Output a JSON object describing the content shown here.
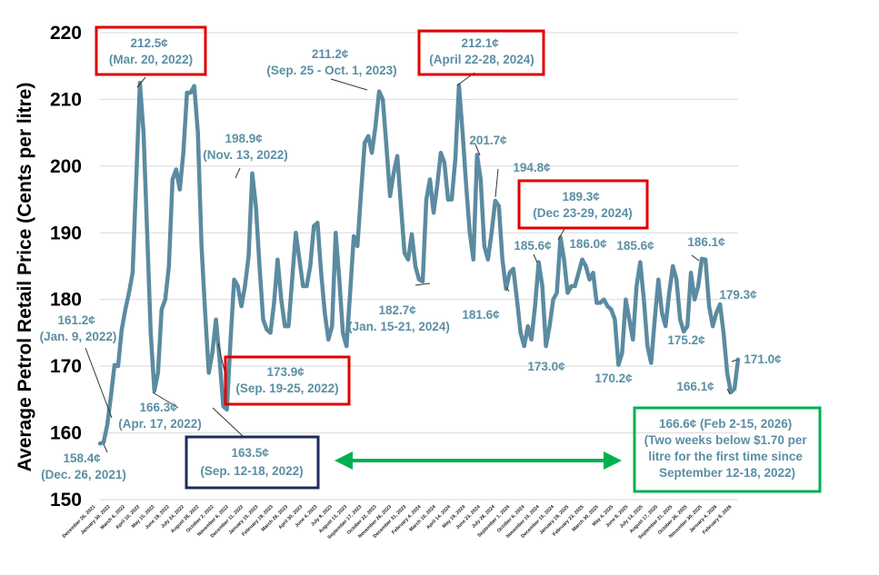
{
  "chart_data": {
    "type": "line",
    "title": "",
    "xlabel": "",
    "ylabel": "Average Petrol Retail Price (Cents per litre)",
    "ylim": [
      150,
      220
    ],
    "yticks": [
      150,
      160,
      170,
      180,
      190,
      200,
      210,
      220
    ],
    "grid": "horizontal",
    "legend": "none",
    "colors": {
      "line": "#5b8ba1",
      "annotation_text": "#5b8fa3",
      "box_red": "#e00000",
      "box_navy": "#1f2d5c",
      "box_green": "#00b050",
      "arrow": "#00b050"
    },
    "x_tick_labels": [
      "December 26, 2021",
      "January 30, 2022",
      "March 6, 2022",
      "April 10, 2022",
      "May 15, 2022",
      "June 19, 2022",
      "July 24, 2022",
      "August 28, 2022",
      "October 2, 2022",
      "November 6, 2022",
      "December 11, 2022",
      "January 15, 2023",
      "February 19, 2023",
      "March 26, 2023",
      "April 30, 2023",
      "June 4, 2023",
      "July 9, 2023",
      "August 13, 2023",
      "September 17, 2023",
      "October 22, 2023",
      "November 26, 2023",
      "December 31, 2023",
      "February 4, 2024",
      "March 10, 2024",
      "April 14, 2024",
      "May 19, 2024",
      "June 23, 2024",
      "July 28, 2024",
      "September 1, 2024",
      "October 6, 2024",
      "November 10, 2024",
      "December 15, 2024",
      "January 19, 2025",
      "February 23, 2025",
      "March 30, 2025",
      "May 4, 2025",
      "June 8, 2025",
      "July 13, 2025",
      "August 17, 2025",
      "September 21, 2025",
      "October 26, 2025",
      "November 30, 2025",
      "January 4, 2026",
      "February 8, 2026"
    ],
    "series": [
      {
        "values": [
          158.4,
          158.6,
          161.2,
          165.5,
          170.2,
          170.0,
          175.5,
          178.5,
          181.0,
          184.0,
          198.0,
          212.5,
          205.0,
          190.0,
          175.0,
          166.3,
          169.0,
          178.5,
          180.0,
          185.0,
          198.0,
          199.5,
          196.5,
          202.0,
          211.0,
          211.0,
          212.0,
          205.0,
          188.0,
          178.0,
          169.0,
          172.0,
          177.0,
          171.0,
          164.0,
          163.5,
          173.9,
          183.0,
          182.0,
          179.0,
          182.0,
          186.5,
          198.9,
          194.0,
          185.0,
          177.0,
          175.5,
          175.0,
          179.5,
          186.0,
          180.0,
          176.0,
          176.0,
          183.0,
          190.0,
          186.0,
          182.0,
          182.0,
          185.0,
          191.0,
          191.5,
          184.0,
          178.0,
          174.0,
          176.0,
          190.0,
          183.0,
          175.0,
          173.0,
          181.0,
          189.5,
          188.0,
          196.0,
          203.5,
          204.5,
          202.0,
          206.0,
          211.2,
          210.0,
          203.0,
          195.5,
          199.0,
          201.5,
          194.0,
          187.0,
          186.0,
          189.8,
          185.0,
          183.0,
          182.7,
          195.0,
          198.0,
          193.0,
          197.0,
          202.0,
          200.5,
          195.0,
          195.0,
          201.0,
          212.1,
          205.0,
          197.0,
          190.0,
          186.0,
          201.7,
          198.0,
          188.0,
          186.0,
          190.0,
          194.8,
          194.0,
          186.0,
          181.6,
          184.0,
          184.6,
          180.0,
          175.0,
          173.0,
          176.0,
          174.0,
          179.0,
          185.6,
          182.0,
          173.0,
          176.0,
          180.0,
          181.0,
          189.3,
          186.0,
          181.0,
          182.0,
          182.0,
          184.0,
          186.0,
          185.0,
          183.0,
          184.0,
          179.5,
          179.5,
          180.0,
          179.0,
          178.5,
          177.0,
          170.2,
          172.0,
          180.0,
          177.0,
          174.0,
          182.0,
          185.6,
          180.0,
          173.0,
          170.5,
          177.0,
          183.0,
          178.0,
          176.0,
          181.0,
          185.0,
          183.0,
          177.0,
          175.2,
          176.0,
          184.0,
          180.0,
          182.0,
          186.1,
          186.0,
          179.0,
          176.0,
          178.0,
          179.3,
          175.0,
          169.0,
          166.1,
          166.6,
          171.0
        ]
      }
    ],
    "annotations": [
      {
        "text": [
          "212.5¢",
          "(Mar. 20, 2022)"
        ],
        "box": "red"
      },
      {
        "text": [
          "211.2¢",
          "(Sep. 25 - Oct. 1, 2023)"
        ],
        "box": "none"
      },
      {
        "text": [
          "212.1¢",
          "(April 22-28, 2024)"
        ],
        "box": "red"
      },
      {
        "text": [
          "198.9¢",
          "(Nov. 13, 2022)"
        ],
        "box": "none"
      },
      {
        "text": [
          "201.7¢"
        ],
        "box": "none"
      },
      {
        "text": [
          "194.8¢"
        ],
        "box": "none"
      },
      {
        "text": [
          "189.3¢",
          "(Dec 23-29, 2024)"
        ],
        "box": "red"
      },
      {
        "text": [
          "185.6¢"
        ],
        "box": "none"
      },
      {
        "text": [
          "186.0¢"
        ],
        "box": "none"
      },
      {
        "text": [
          "185.6¢"
        ],
        "box": "none"
      },
      {
        "text": [
          "186.1¢"
        ],
        "box": "none"
      },
      {
        "text": [
          "179.3¢"
        ],
        "box": "none"
      },
      {
        "text": [
          "175.2¢"
        ],
        "box": "none"
      },
      {
        "text": [
          "181.6¢"
        ],
        "box": "none"
      },
      {
        "text": [
          "182.7¢",
          "(Jan. 15-21, 2024)"
        ],
        "box": "none"
      },
      {
        "text": [
          "161.2¢",
          "(Jan. 9, 2022)"
        ],
        "box": "none"
      },
      {
        "text": [
          "166.3¢",
          "(Apr. 17, 2022)"
        ],
        "box": "none"
      },
      {
        "text": [
          "158.4¢",
          "(Dec. 26, 2021)"
        ],
        "box": "none"
      },
      {
        "text": [
          "173.9¢",
          "(Sep. 19-25, 2022)"
        ],
        "box": "red"
      },
      {
        "text": [
          "163.5¢",
          "(Sep. 12-18, 2022)"
        ],
        "box": "navy"
      },
      {
        "text": [
          "173.0¢"
        ],
        "box": "none"
      },
      {
        "text": [
          "170.2¢"
        ],
        "box": "none"
      },
      {
        "text": [
          "166.1¢"
        ],
        "box": "none"
      },
      {
        "text": [
          "171.0¢"
        ],
        "box": "none"
      },
      {
        "text": [
          "166.6¢ (Feb 2-15, 2026)",
          "(Two weeks below $1.70 per",
          "litre for the first time since",
          "September 12-18, 2022)"
        ],
        "box": "green"
      }
    ]
  }
}
